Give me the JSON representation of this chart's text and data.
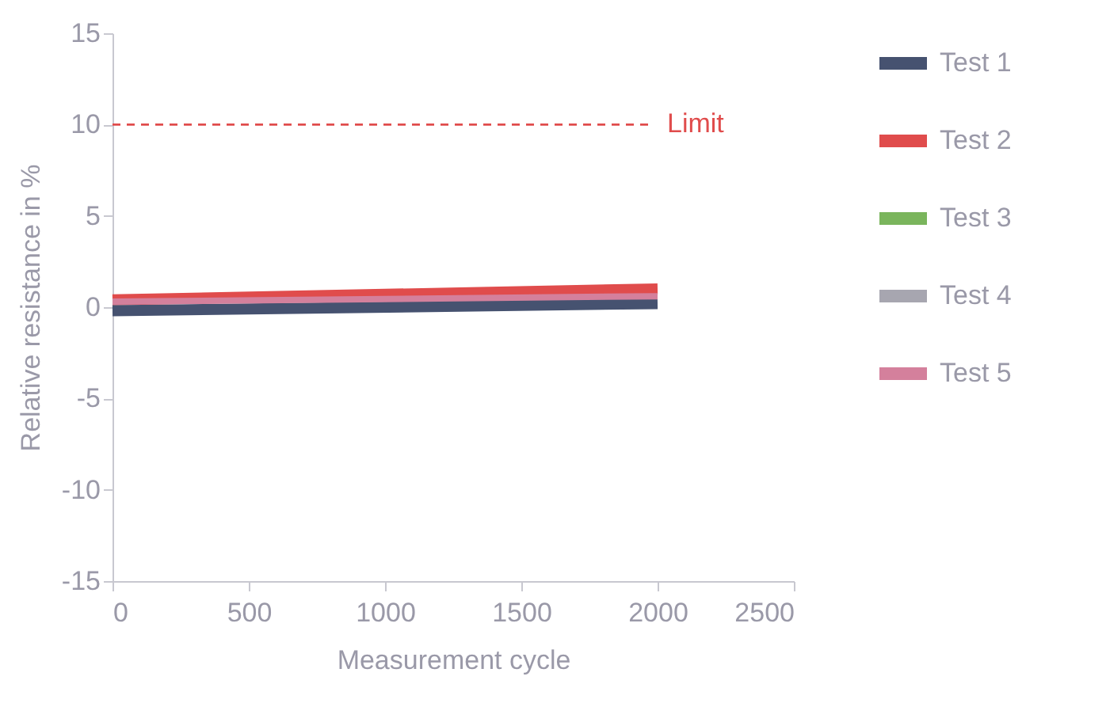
{
  "chart_data": {
    "type": "line",
    "xlabel": "Measurement cycle",
    "ylabel": "Relative resistance in %",
    "x": [
      0,
      2000
    ],
    "series": [
      {
        "name": "Test 1",
        "color": "#465270",
        "values": [
          -0.2,
          0.2
        ]
      },
      {
        "name": "Test 2",
        "color": "#e04c4c",
        "values": [
          0.4,
          1.0
        ]
      },
      {
        "name": "Test 3",
        "color": "#7ab55c",
        "values": [
          null,
          null
        ]
      },
      {
        "name": "Test 4",
        "color": "#a7a6b0",
        "values": [
          null,
          null
        ]
      },
      {
        "name": "Test 5",
        "color": "#d4809c",
        "values": [
          0.3,
          0.6
        ]
      }
    ],
    "xlim": [
      0,
      2500
    ],
    "xticks": [
      0,
      500,
      1000,
      1500,
      2000,
      2500
    ],
    "ylim": [
      -15,
      15
    ],
    "yticks": [
      -15,
      -10,
      -5,
      0,
      5,
      10,
      15
    ],
    "ref_lines": [
      {
        "axis": "y",
        "value": 10,
        "label": "Limit",
        "color": "#e04c4c",
        "line_style": "dashed"
      }
    ],
    "grid": false,
    "legend": "right",
    "line_style": "solid"
  }
}
